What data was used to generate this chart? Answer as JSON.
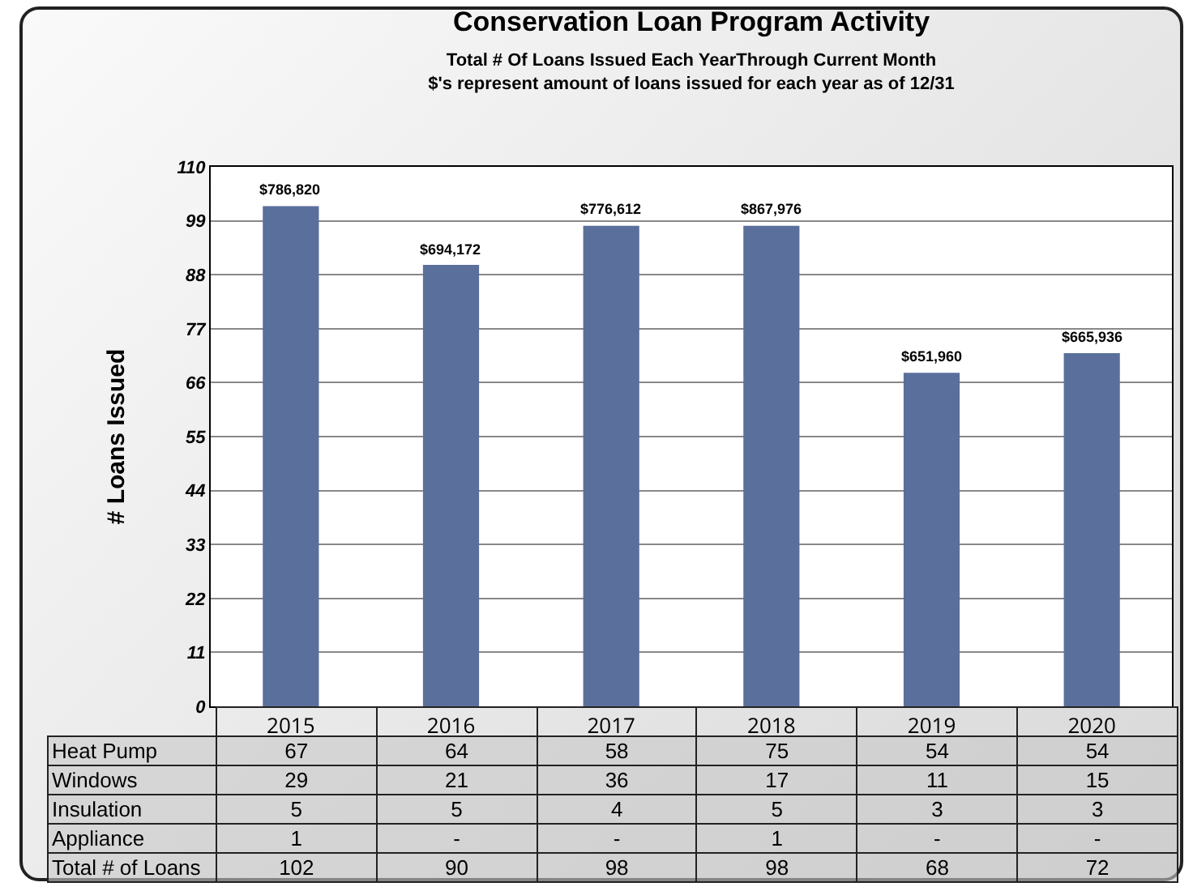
{
  "chart_data": {
    "type": "bar",
    "title": "Conservation Loan Program Activity",
    "subtitle": [
      "Total # Of Loans Issued Each YearThrough Current Month",
      "$'s represent amount of loans issued for each year as of 12/31"
    ],
    "ylabel": "# Loans Issued",
    "categories": [
      "2015",
      "2016",
      "2017",
      "2018",
      "2019",
      "2020"
    ],
    "values": [
      102,
      90,
      98,
      98,
      68,
      72
    ],
    "color": "#5b6f9c",
    "ylim": [
      0,
      110
    ],
    "yticks": [
      0,
      11,
      22,
      33,
      44,
      55,
      66,
      77,
      88,
      99,
      110
    ],
    "grid": "y",
    "annotations": [
      {
        "text": "$786,820",
        "x": "2015",
        "y": 102
      },
      {
        "text": "$694,172",
        "x": "2016",
        "y": 90
      },
      {
        "text": "$776,612",
        "x": "2017",
        "y": 98
      },
      {
        "text": "$867,976",
        "x": "2018",
        "y": 98
      },
      {
        "text": "$651,960",
        "x": "2019",
        "y": 68
      },
      {
        "text": "$665,936",
        "x": "2020",
        "y": 72
      },
      "Heat Pump",
      "67",
      "64",
      "58",
      "75",
      "54",
      "54",
      "Windows",
      "29",
      "21",
      "36",
      "17",
      "11",
      "15",
      "Insulation",
      "5",
      "5",
      "4",
      "5",
      "3",
      "3",
      "Appliance",
      "1",
      "-",
      "-",
      "1",
      "-",
      "-",
      "Total # of Loans",
      "102",
      "90",
      "98",
      "98",
      "68",
      "72"
    ]
  }
}
